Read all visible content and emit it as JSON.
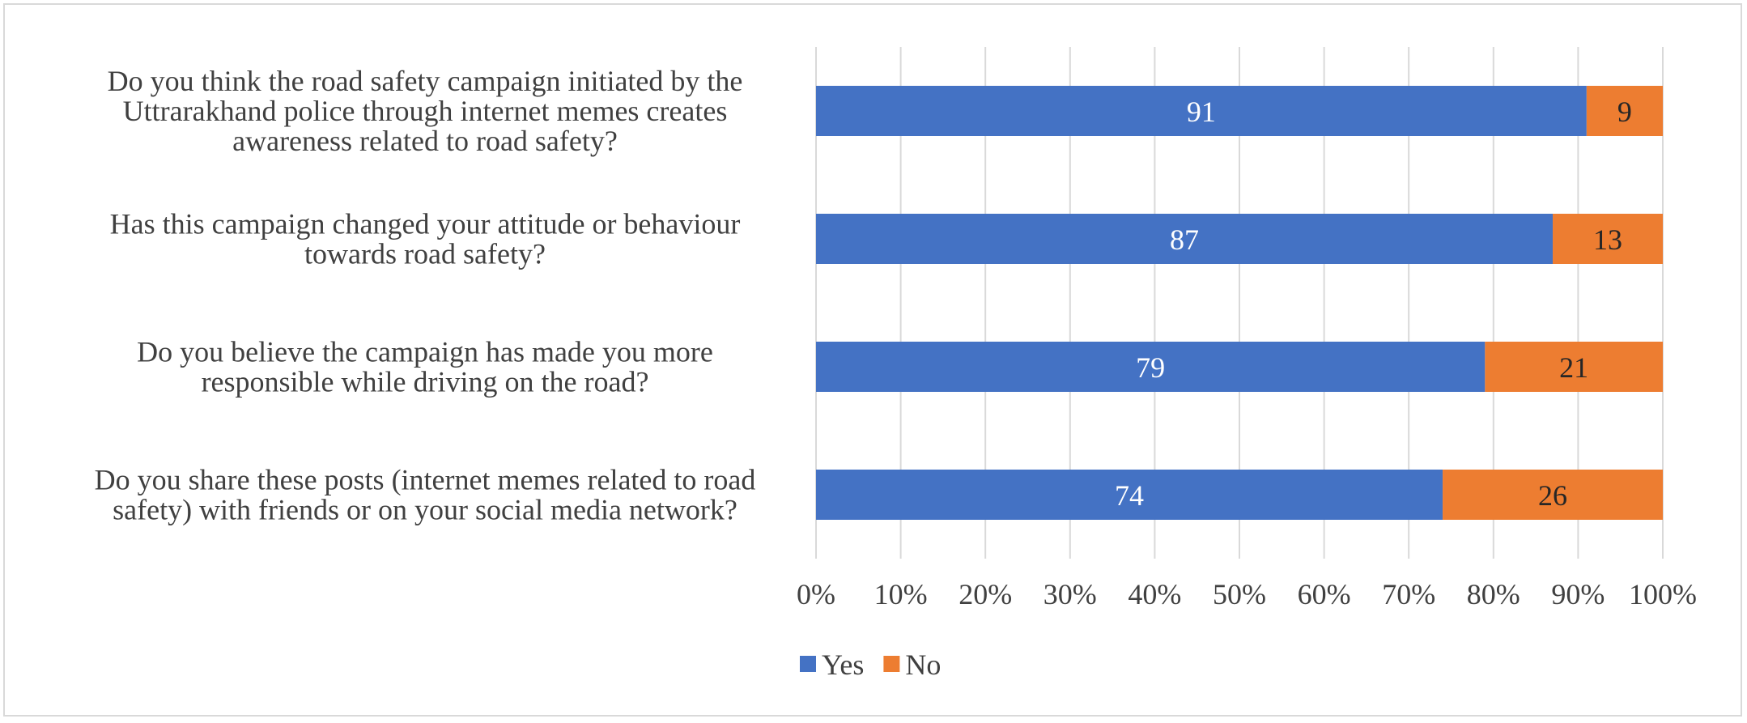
{
  "chart_data": {
    "type": "bar",
    "orientation": "horizontal",
    "stacked": "percent",
    "categories": [
      [
        "Do you think the road safety campaign initiated by the",
        "Uttrarakhand police through internet memes creates",
        "awareness related to road safety?"
      ],
      [
        "Has this campaign changed your attitude or behaviour",
        "towards road safety?"
      ],
      [
        "Do you believe the campaign has made you more",
        "responsible while driving on the road?"
      ],
      [
        "Do you share these posts (internet memes related to road",
        "safety) with friends or on your social media network?"
      ]
    ],
    "series": [
      {
        "name": "Yes",
        "values": [
          91,
          87,
          79,
          74
        ],
        "color": "#4472C4",
        "label_color": "#FFFFFF"
      },
      {
        "name": "No",
        "values": [
          9,
          13,
          21,
          26
        ],
        "color": "#ED7D31",
        "label_color": "#262626"
      }
    ],
    "xlim": [
      0,
      100
    ],
    "xticks": [
      "0%",
      "10%",
      "20%",
      "30%",
      "40%",
      "50%",
      "60%",
      "70%",
      "80%",
      "90%",
      "100%"
    ],
    "grid": true,
    "legend": "bottom"
  }
}
